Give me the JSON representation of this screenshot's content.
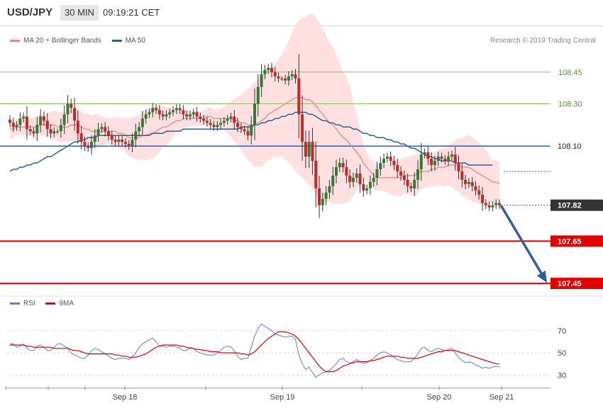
{
  "header": {
    "symbol": "USD/JPY",
    "timeframe": "30 MIN",
    "time": "09:19:21 CET"
  },
  "legend": {
    "ma20_bb": "MA 20 + Bollinger Bands",
    "ma50": "MA 50",
    "rsi": "RSI",
    "ma9": "9MA"
  },
  "credit": "Research © 2019 Trading Central",
  "colors": {
    "bull": "#2e7d32",
    "bear": "#c62828",
    "ma20": "#f08080",
    "band_fill": "#ffe0e0",
    "ma50": "#2f5f98",
    "rsi": "#5b7fe0",
    "rsi_ma": "#e00000",
    "support": "#e00000",
    "resistance": "#8cbf5a",
    "pivot": "#3060c0",
    "arrow": "#2f5f98",
    "current_badge": "#333333"
  },
  "chart_data": [
    {
      "type": "candlestick",
      "title": "USD/JPY 30 MIN",
      "x_ticks": [
        "Sep 18",
        "Sep 19",
        "Sep 20",
        "Sep 21"
      ],
      "ylim": [
        107.41,
        108.57
      ],
      "levels": [
        {
          "value": 108.45,
          "label": "108.45",
          "kind": "resistance"
        },
        {
          "value": 108.3,
          "label": "108.30",
          "kind": "resistance"
        },
        {
          "value": 108.1,
          "label": "108.10",
          "kind": "pivot"
        },
        {
          "value": 107.82,
          "label": "107.82",
          "kind": "current"
        },
        {
          "value": 107.65,
          "label": "107.65",
          "kind": "support"
        },
        {
          "value": 107.45,
          "label": "107.45",
          "kind": "support"
        }
      ],
      "projection": {
        "from": 107.82,
        "to": 107.45
      },
      "close": [
        108.21,
        108.19,
        108.2,
        108.23,
        108.24,
        108.18,
        108.17,
        108.16,
        108.2,
        108.24,
        108.22,
        108.18,
        108.16,
        108.17,
        108.17,
        108.2,
        108.25,
        108.3,
        108.28,
        108.22,
        108.16,
        108.12,
        108.1,
        108.09,
        108.12,
        108.15,
        108.18,
        108.19,
        108.17,
        108.15,
        108.13,
        108.12,
        108.13,
        108.12,
        108.11,
        108.1,
        108.13,
        108.17,
        108.19,
        108.23,
        108.25,
        108.26,
        108.28,
        108.27,
        108.25,
        108.24,
        108.25,
        108.26,
        108.27,
        108.28,
        108.27,
        108.25,
        108.24,
        108.25,
        108.26,
        108.24,
        108.23,
        108.22,
        108.21,
        108.2,
        108.19,
        108.2,
        108.21,
        108.22,
        108.23,
        108.24,
        108.21,
        108.19,
        108.18,
        108.17,
        108.15,
        108.2,
        108.3,
        108.38,
        108.44,
        108.46,
        108.47,
        108.45,
        108.43,
        108.42,
        108.42,
        108.41,
        108.43,
        108.44,
        108.42,
        108.25,
        108.12,
        108.05,
        108.12,
        108.03,
        107.9,
        107.82,
        107.85,
        107.88,
        107.91,
        107.96,
        108.0,
        108.02,
        108.0,
        107.96,
        107.93,
        107.95,
        107.97,
        107.92,
        107.89,
        107.9,
        107.93,
        107.95,
        107.99,
        108.02,
        108.04,
        108.05,
        108.03,
        108.01,
        107.98,
        107.96,
        107.94,
        107.91,
        107.9,
        107.94,
        107.99,
        108.06,
        108.07,
        108.04,
        108.01,
        108.03,
        108.05,
        108.04,
        108.03,
        108.05,
        108.06,
        108.02,
        107.98,
        107.94,
        107.92,
        107.93,
        107.91,
        107.89,
        107.87,
        107.83,
        107.82,
        107.81,
        107.82,
        107.83,
        107.82
      ],
      "ma20": [
        108.18,
        108.18,
        108.19,
        108.19,
        108.19,
        108.19,
        108.19,
        108.19,
        108.19,
        108.2,
        108.2,
        108.2,
        108.2,
        108.2,
        108.19,
        108.19,
        108.19,
        108.19,
        108.2,
        108.2,
        108.2,
        108.19,
        108.18,
        108.18,
        108.17,
        108.17,
        108.17,
        108.17,
        108.17,
        108.17,
        108.17,
        108.17,
        108.16,
        108.16,
        108.15,
        108.14,
        108.14,
        108.14,
        108.14,
        108.15,
        108.15,
        108.16,
        108.16,
        108.17,
        108.18,
        108.19,
        108.19,
        108.2,
        108.21,
        108.22,
        108.22,
        108.23,
        108.23,
        108.23,
        108.23,
        108.23,
        108.23,
        108.23,
        108.24,
        108.24,
        108.23,
        108.23,
        108.23,
        108.23,
        108.23,
        108.23,
        108.22,
        108.22,
        108.21,
        108.21,
        108.2,
        108.2,
        108.2,
        108.21,
        108.22,
        108.23,
        108.25,
        108.26,
        108.27,
        108.28,
        108.29,
        108.3,
        108.31,
        108.32,
        108.33,
        108.33,
        108.33,
        108.32,
        108.32,
        108.31,
        108.29,
        108.27,
        108.25,
        108.23,
        108.21,
        108.2,
        108.18,
        108.16,
        108.14,
        108.13,
        108.11,
        108.09,
        108.07,
        108.05,
        108.02,
        108.0,
        107.98,
        107.96,
        107.95,
        107.95,
        107.95,
        107.95,
        107.95,
        107.95,
        107.95,
        107.95,
        107.96,
        107.96,
        107.96,
        107.96,
        107.97,
        107.98,
        107.98,
        107.98,
        107.99,
        107.99,
        108.0,
        108.0,
        108.0,
        108.01,
        108.01,
        108.01,
        108.01,
        108.0,
        108.0,
        108.0,
        107.99,
        107.98,
        107.97,
        107.96,
        107.95,
        107.94,
        107.93,
        107.93,
        107.92
      ],
      "ma50": [
        107.98,
        107.99,
        107.99,
        108.0,
        108.0,
        108.01,
        108.01,
        108.02,
        108.02,
        108.03,
        108.04,
        108.05,
        108.05,
        108.06,
        108.07,
        108.08,
        108.09,
        108.1,
        108.11,
        108.12,
        108.12,
        108.13,
        108.13,
        108.14,
        108.14,
        108.14,
        108.15,
        108.15,
        108.15,
        108.15,
        108.15,
        108.15,
        108.15,
        108.15,
        108.15,
        108.15,
        108.15,
        108.15,
        108.15,
        108.15,
        108.15,
        108.15,
        108.16,
        108.16,
        108.16,
        108.16,
        108.17,
        108.17,
        108.17,
        108.17,
        108.17,
        108.18,
        108.18,
        108.18,
        108.18,
        108.18,
        108.18,
        108.18,
        108.18,
        108.18,
        108.18,
        108.18,
        108.18,
        108.18,
        108.18,
        108.18,
        108.18,
        108.18,
        108.19,
        108.19,
        108.19,
        108.19,
        108.2,
        108.2,
        108.21,
        108.21,
        108.22,
        108.22,
        108.23,
        108.23,
        108.24,
        108.24,
        108.25,
        108.25,
        108.26,
        108.26,
        108.26,
        108.26,
        108.25,
        108.25,
        108.24,
        108.23,
        108.22,
        108.22,
        108.21,
        108.21,
        108.2,
        108.2,
        108.19,
        108.19,
        108.19,
        108.18,
        108.18,
        108.17,
        108.16,
        108.16,
        108.15,
        108.15,
        108.14,
        108.14,
        108.14,
        108.13,
        108.13,
        108.12,
        108.12,
        108.11,
        108.11,
        108.1,
        108.09,
        108.09,
        108.08,
        108.07,
        108.06,
        108.05,
        108.05,
        108.04,
        108.04,
        108.03,
        108.03,
        108.03,
        108.03,
        108.02,
        108.02,
        108.02,
        108.02,
        108.01,
        108.01,
        108.01,
        108.01,
        108.01,
        108.01,
        108.01,
        108.01
      ],
      "series": [
        {
          "name": "MA 20 + Bollinger Bands"
        },
        {
          "name": "MA 50"
        }
      ]
    },
    {
      "type": "line",
      "x_ticks": [
        "Sep 18",
        "Sep 19",
        "Sep 20",
        "Sep 21"
      ],
      "ylim": [
        20,
        82
      ],
      "yticks": [
        30,
        50,
        70
      ],
      "series": [
        {
          "name": "RSI",
          "values": [
            58,
            58,
            55,
            56,
            58,
            54,
            52,
            52,
            56,
            57,
            55,
            52,
            52,
            55,
            58,
            58,
            56,
            54,
            50,
            48,
            47,
            45,
            45,
            48,
            52,
            54,
            53,
            51,
            49,
            47,
            45,
            44,
            45,
            45,
            45,
            44,
            46,
            50,
            55,
            58,
            60,
            62,
            63,
            60,
            56,
            56,
            55,
            56,
            56,
            55,
            54,
            52,
            52,
            55,
            54,
            51,
            50,
            49,
            48,
            48,
            48,
            50,
            52,
            55,
            56,
            55,
            52,
            47,
            44,
            45,
            45,
            55,
            65,
            72,
            76,
            74,
            72,
            70,
            67,
            66,
            65,
            64,
            65,
            65,
            62,
            48,
            40,
            35,
            37,
            32,
            28,
            30,
            32,
            33,
            34,
            37,
            40,
            44,
            45,
            42,
            41,
            42,
            44,
            42,
            40,
            41,
            43,
            45,
            48,
            50,
            51,
            50,
            48,
            46,
            44,
            43,
            42,
            42,
            42,
            45,
            49,
            54,
            55,
            52,
            51,
            53,
            54,
            53,
            52,
            53,
            54,
            50,
            46,
            43,
            41,
            42,
            41,
            39,
            38,
            36,
            37,
            36,
            37,
            38,
            37
          ]
        },
        {
          "name": "9MA",
          "values": [
            57,
            57,
            57,
            57,
            57,
            56,
            56,
            55,
            55,
            55,
            55,
            55,
            55,
            54,
            54,
            54,
            54,
            54,
            53,
            52,
            52,
            51,
            50,
            49,
            49,
            49,
            49,
            49,
            49,
            49,
            49,
            48,
            48,
            47,
            47,
            46,
            46,
            46,
            47,
            48,
            49,
            51,
            53,
            55,
            56,
            57,
            57,
            57,
            57,
            57,
            56,
            56,
            55,
            54,
            54,
            53,
            53,
            52,
            52,
            51,
            51,
            51,
            50,
            50,
            50,
            50,
            50,
            50,
            49,
            49,
            48,
            49,
            51,
            54,
            57,
            60,
            63,
            65,
            67,
            69,
            69,
            69,
            68,
            67,
            65,
            62,
            58,
            54,
            50,
            46,
            42,
            38,
            35,
            33,
            33,
            33,
            34,
            36,
            38,
            39,
            40,
            41,
            42,
            42,
            42,
            42,
            43,
            43,
            44,
            45,
            46,
            47,
            47,
            47,
            47,
            46,
            46,
            45,
            45,
            45,
            45,
            46,
            47,
            48,
            49,
            50,
            51,
            51,
            52,
            52,
            52,
            52,
            51,
            50,
            49,
            48,
            47,
            46,
            45,
            44,
            43,
            42,
            41,
            40,
            40
          ]
        }
      ]
    }
  ]
}
